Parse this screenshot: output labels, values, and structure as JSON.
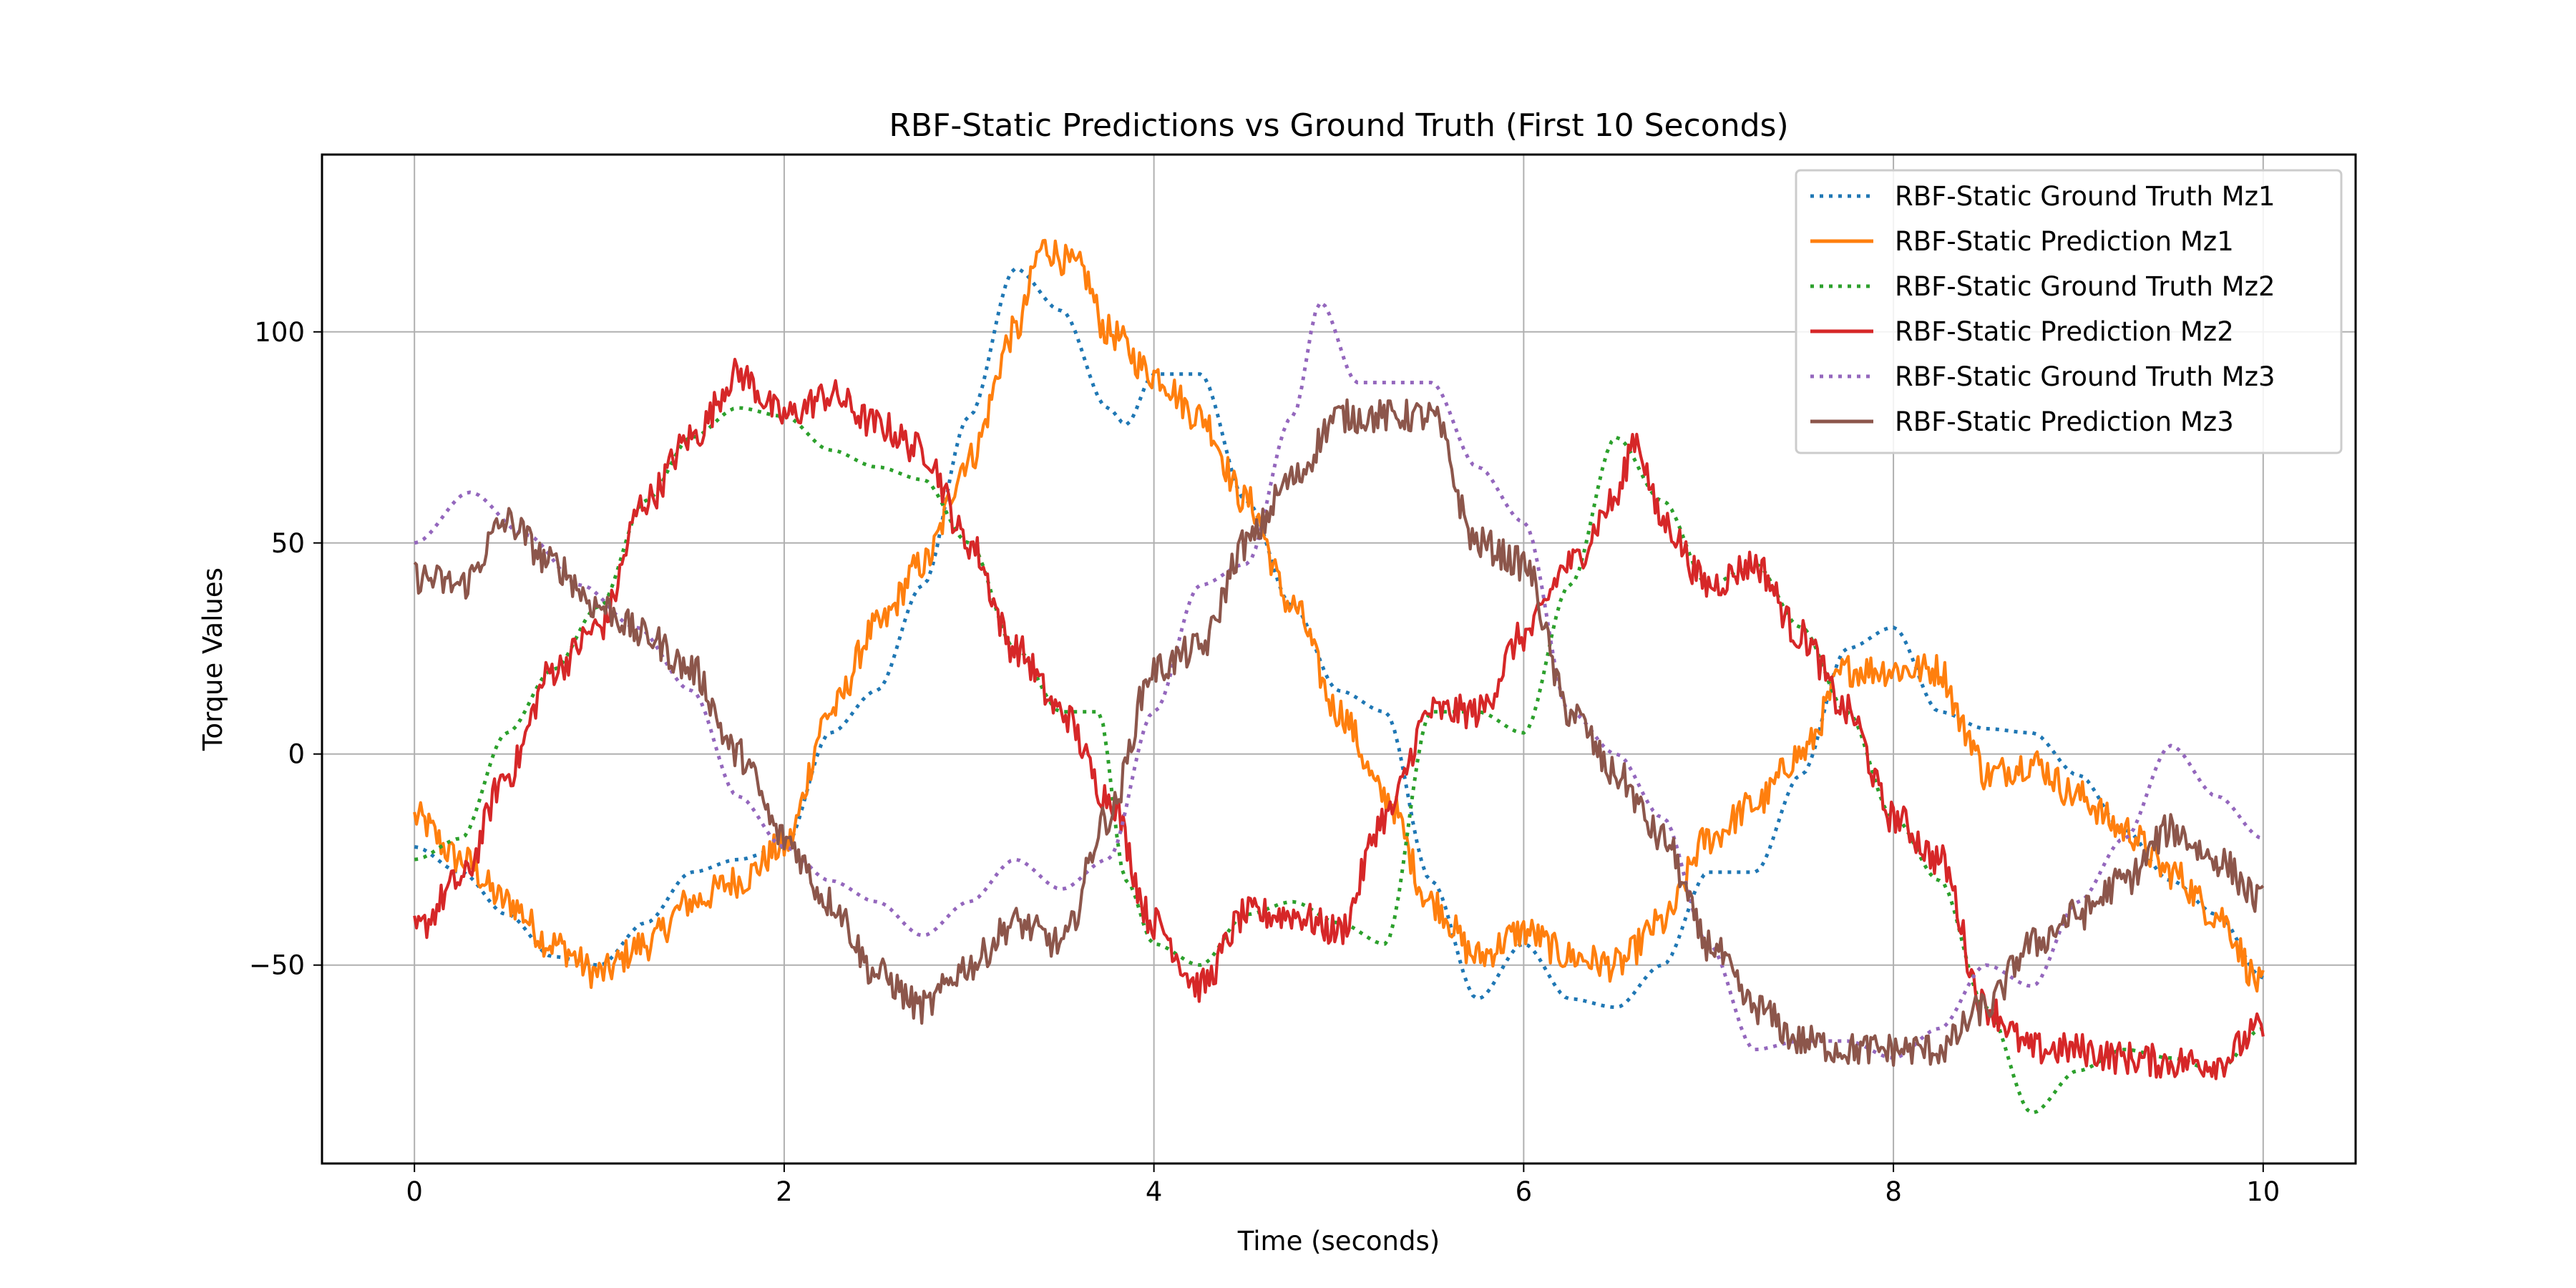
{
  "chart_data": {
    "type": "line",
    "title": "RBF-Static Predictions vs Ground Truth (First 10 Seconds)",
    "xlabel": "Time (seconds)",
    "ylabel": "Torque Values",
    "xlim": [
      -0.5,
      10.5
    ],
    "ylim": [
      -97,
      142
    ],
    "xticks": [
      0,
      2,
      4,
      6,
      8,
      10
    ],
    "xtick_labels": [
      "0",
      "2",
      "4",
      "6",
      "8",
      "10"
    ],
    "yticks": [
      -50,
      0,
      50,
      100
    ],
    "ytick_labels": [
      "−50",
      "0",
      "50",
      "100"
    ],
    "grid": true,
    "legend_position": "upper right",
    "series": [
      {
        "name": "RBF-Static Ground Truth Mz1",
        "color": "#1f77b4",
        "style": "dotted",
        "noise": 0,
        "x": [
          0,
          0.25,
          0.5,
          0.75,
          1.0,
          1.25,
          1.5,
          1.75,
          2.0,
          2.25,
          2.5,
          2.75,
          3.0,
          3.25,
          3.5,
          3.75,
          3.85,
          4.0,
          4.25,
          4.5,
          4.75,
          5.0,
          5.25,
          5.5,
          5.75,
          6.0,
          6.25,
          6.5,
          6.75,
          7.0,
          7.25,
          7.5,
          7.75,
          8.0,
          8.25,
          8.5,
          8.75,
          9.0,
          9.25,
          9.5,
          9.75,
          10.0
        ],
        "y": [
          -22,
          -28,
          -38,
          -48,
          -50,
          -40,
          -28,
          -25,
          -22,
          5,
          15,
          40,
          80,
          115,
          105,
          82,
          78,
          90,
          90,
          60,
          35,
          15,
          10,
          -30,
          -58,
          -45,
          -58,
          -60,
          -50,
          -28,
          -28,
          -5,
          25,
          30,
          10,
          6,
          5,
          -5,
          -18,
          -30,
          -38,
          -53
        ]
      },
      {
        "name": "RBF-Static Prediction Mz1",
        "color": "#ff7f0e",
        "style": "solid",
        "noise": 4,
        "x": [
          0,
          0.25,
          0.5,
          0.75,
          1.0,
          1.25,
          1.5,
          1.75,
          2.0,
          2.25,
          2.5,
          2.75,
          3.0,
          3.25,
          3.4,
          3.6,
          3.75,
          4.0,
          4.25,
          4.5,
          4.75,
          5.0,
          5.25,
          5.5,
          5.75,
          6.0,
          6.25,
          6.5,
          6.75,
          7.0,
          7.25,
          7.5,
          7.75,
          8.0,
          8.25,
          8.4,
          8.5,
          8.75,
          9.0,
          9.25,
          9.5,
          9.75,
          10.0
        ],
        "y": [
          -15,
          -25,
          -35,
          -45,
          -52,
          -45,
          -35,
          -30,
          -22,
          10,
          30,
          45,
          70,
          100,
          120,
          115,
          100,
          90,
          80,
          60,
          35,
          10,
          -10,
          -35,
          -48,
          -42,
          -48,
          -50,
          -40,
          -20,
          -12,
          0,
          20,
          20,
          20,
          5,
          -5,
          -2,
          -10,
          -18,
          -28,
          -38,
          -55
        ]
      },
      {
        "name": "RBF-Static Ground Truth Mz2",
        "color": "#2ca02c",
        "style": "dotted",
        "noise": 0,
        "x": [
          0,
          0.25,
          0.5,
          0.75,
          1.0,
          1.25,
          1.5,
          1.75,
          2.0,
          2.25,
          2.5,
          2.75,
          3.0,
          3.25,
          3.5,
          3.7,
          3.85,
          4.0,
          4.25,
          4.5,
          4.75,
          5.0,
          5.25,
          5.5,
          5.75,
          6.0,
          6.25,
          6.5,
          6.75,
          7.0,
          7.25,
          7.5,
          7.75,
          8.0,
          8.25,
          8.5,
          8.75,
          9.0,
          9.25,
          9.5,
          9.75,
          10.0
        ],
        "y": [
          -25,
          -20,
          5,
          20,
          35,
          60,
          75,
          82,
          80,
          72,
          68,
          65,
          50,
          25,
          10,
          10,
          -30,
          -45,
          -50,
          -38,
          -35,
          -40,
          -45,
          10,
          10,
          5,
          40,
          75,
          60,
          40,
          45,
          30,
          10,
          -15,
          -30,
          -60,
          -85,
          -75,
          -70,
          -72,
          -75,
          -65
        ]
      },
      {
        "name": "RBF-Static Prediction Mz2",
        "color": "#d62728",
        "style": "solid",
        "noise": 4,
        "x": [
          0,
          0.25,
          0.5,
          0.75,
          1.0,
          1.25,
          1.5,
          1.75,
          2.0,
          2.25,
          2.5,
          2.75,
          3.0,
          3.25,
          3.5,
          3.75,
          4.0,
          4.25,
          4.5,
          4.75,
          5.0,
          5.25,
          5.5,
          5.75,
          6.0,
          6.25,
          6.5,
          6.6,
          6.75,
          7.0,
          7.25,
          7.5,
          7.75,
          8.0,
          8.25,
          8.5,
          8.75,
          9.0,
          9.25,
          9.5,
          9.75,
          10.0
        ],
        "y": [
          -42,
          -30,
          -5,
          20,
          30,
          60,
          75,
          90,
          80,
          85,
          78,
          72,
          50,
          25,
          10,
          -10,
          -40,
          -55,
          -38,
          -38,
          -42,
          -15,
          10,
          10,
          28,
          45,
          60,
          75,
          55,
          40,
          45,
          28,
          10,
          -15,
          -25,
          -60,
          -70,
          -70,
          -72,
          -73,
          -73,
          -65
        ]
      },
      {
        "name": "RBF-Static Ground Truth Mz3",
        "color": "#9467bd",
        "style": "dotted",
        "noise": 0,
        "x": [
          0,
          0.3,
          0.6,
          0.9,
          1.2,
          1.5,
          1.75,
          2.0,
          2.25,
          2.5,
          2.75,
          3.0,
          3.25,
          3.5,
          3.75,
          4.0,
          4.25,
          4.5,
          4.75,
          4.9,
          5.1,
          5.5,
          5.75,
          6.0,
          6.25,
          6.5,
          6.75,
          7.0,
          7.25,
          7.5,
          7.75,
          8.0,
          8.25,
          8.5,
          8.75,
          9.0,
          9.25,
          9.5,
          9.75,
          10.0
        ],
        "y": [
          50,
          62,
          52,
          40,
          30,
          15,
          -10,
          -22,
          -30,
          -35,
          -43,
          -35,
          -25,
          -32,
          -25,
          10,
          40,
          45,
          80,
          107,
          88,
          88,
          68,
          55,
          10,
          0,
          -15,
          -45,
          -70,
          -68,
          -68,
          -72,
          -65,
          -50,
          -55,
          -35,
          -20,
          2,
          -10,
          -20
        ]
      },
      {
        "name": "RBF-Static Prediction Mz3",
        "color": "#8c564b",
        "style": "solid",
        "noise": 4,
        "x": [
          0,
          0.25,
          0.5,
          0.75,
          1.0,
          1.25,
          1.5,
          1.75,
          2.0,
          2.25,
          2.5,
          2.75,
          3.0,
          3.25,
          3.5,
          3.75,
          4.0,
          4.25,
          4.5,
          4.75,
          5.0,
          5.25,
          5.5,
          5.75,
          6.0,
          6.25,
          6.5,
          6.75,
          7.0,
          7.25,
          7.5,
          7.75,
          8.0,
          8.25,
          8.5,
          8.75,
          9.0,
          9.25,
          9.5,
          9.75,
          10.0
        ],
        "y": [
          42,
          40,
          55,
          45,
          35,
          28,
          20,
          0,
          -20,
          -35,
          -52,
          -60,
          -50,
          -40,
          -45,
          -15,
          20,
          25,
          50,
          65,
          80,
          80,
          80,
          50,
          45,
          10,
          -5,
          -20,
          -45,
          -60,
          -68,
          -70,
          -70,
          -70,
          -60,
          -45,
          -38,
          -30,
          -18,
          -25,
          -35
        ]
      }
    ]
  }
}
